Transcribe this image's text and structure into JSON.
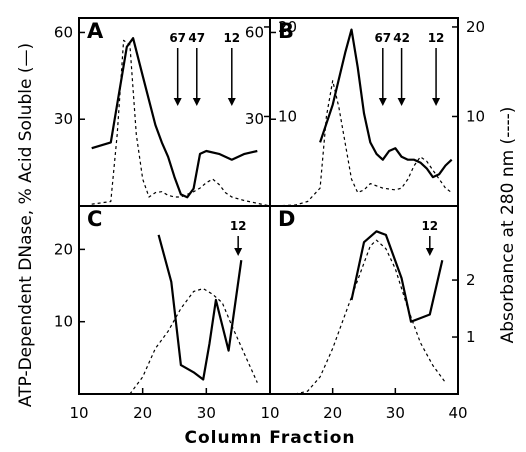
{
  "figure": {
    "ylabel_left": "ATP-Dependent DNase, % Acid Soluble (—)",
    "ylabel_right": "Absorbance at 280 nm (----)",
    "xlabel": "Column Fraction"
  },
  "colors": {
    "solid": "#000000",
    "dashed": "#000000",
    "frame": "#000000"
  },
  "chart_data": [
    {
      "panel": "A",
      "type": "line",
      "xlim": [
        10,
        40
      ],
      "ylim_left": [
        0,
        65
      ],
      "ylim_right": [
        0,
        21
      ],
      "yticks_left": [
        30,
        60
      ],
      "yticks_right": [
        10,
        20
      ],
      "markers": [
        {
          "label": "67",
          "x": 25.5
        },
        {
          "label": "47",
          "x": 28.5
        },
        {
          "label": "12",
          "x": 34
        }
      ],
      "series": [
        {
          "axis": "left",
          "style": "solid",
          "x": [
            12,
            15,
            17.5,
            18.5,
            20,
            22,
            23,
            24,
            25,
            26,
            27,
            28,
            29,
            30,
            32,
            34,
            36,
            38
          ],
          "y": [
            20,
            22,
            55,
            58,
            45,
            28,
            22,
            17,
            10,
            4,
            3,
            6,
            18,
            19,
            18,
            16,
            18,
            19
          ]
        },
        {
          "axis": "right",
          "style": "dashed",
          "x": [
            12,
            15,
            16,
            17,
            18,
            19,
            20,
            21,
            22,
            23,
            24,
            25,
            26,
            27,
            28,
            29,
            30,
            31,
            32,
            33,
            34,
            36,
            38,
            40
          ],
          "y": [
            0.2,
            0.5,
            8,
            18.5,
            18,
            8,
            3,
            1,
            1.5,
            1.6,
            1.2,
            1,
            1,
            1.3,
            1.6,
            2,
            2.6,
            3,
            2.4,
            1.5,
            1,
            0.6,
            0.3,
            0
          ]
        }
      ]
    },
    {
      "panel": "B",
      "type": "line",
      "xlim": [
        10,
        40
      ],
      "ylim_left": [
        0,
        65
      ],
      "ylim_right": [
        0,
        21
      ],
      "yticks_left": [
        30,
        60
      ],
      "yticks_right": [
        10,
        20
      ],
      "markers": [
        {
          "label": "67",
          "x": 28
        },
        {
          "label": "42",
          "x": 31
        },
        {
          "label": "12",
          "x": 36.5
        }
      ],
      "series": [
        {
          "axis": "left",
          "style": "solid",
          "x": [
            18,
            20,
            22,
            23,
            24,
            25,
            26,
            27,
            28,
            29,
            30,
            31,
            32,
            33,
            34,
            35,
            36,
            37,
            38,
            39
          ],
          "y": [
            22,
            35,
            53,
            61,
            48,
            32,
            22,
            18,
            16,
            19,
            20,
            17,
            16,
            16,
            15,
            13,
            10,
            11,
            14,
            16
          ]
        },
        {
          "axis": "right",
          "style": "dashed",
          "x": [
            10,
            14,
            16,
            18,
            19,
            20,
            21,
            22,
            23,
            24,
            25,
            26,
            28,
            30,
            31,
            32,
            33,
            34,
            35,
            36,
            37,
            38,
            39
          ],
          "y": [
            0,
            0.1,
            0.5,
            2,
            10,
            14,
            11,
            7,
            3,
            1.5,
            1.8,
            2.5,
            2,
            1.8,
            2,
            3,
            4.5,
            5.5,
            5,
            4,
            3,
            2,
            1.5
          ]
        }
      ]
    },
    {
      "panel": "C",
      "type": "line",
      "xlim": [
        10,
        40
      ],
      "ylim_left": [
        0,
        26
      ],
      "ylim_right": [
        0,
        3.3
      ],
      "yticks_left": [
        10,
        20
      ],
      "yticks_right": [],
      "markers": [
        {
          "label": "12",
          "x": 35
        }
      ],
      "series": [
        {
          "axis": "left",
          "style": "solid",
          "x": [
            22.5,
            24.5,
            26,
            28,
            29.5,
            30.5,
            31.5,
            33.5,
            35.5
          ],
          "y": [
            22,
            15.5,
            4,
            3,
            2,
            7,
            13,
            6,
            18.5
          ]
        },
        {
          "axis": "right",
          "style": "dashed",
          "x": [
            18,
            20,
            22,
            24,
            26,
            28,
            29.5,
            31,
            32.5,
            34,
            36,
            38
          ],
          "y": [
            0,
            0.3,
            0.8,
            1.1,
            1.5,
            1.8,
            1.85,
            1.75,
            1.6,
            1.2,
            0.7,
            0.2
          ]
        }
      ]
    },
    {
      "panel": "D",
      "type": "line",
      "xlim": [
        10,
        40
      ],
      "ylim_left": [
        0,
        26
      ],
      "ylim_right": [
        0,
        3.3
      ],
      "yticks_left": [],
      "yticks_right": [
        1,
        2
      ],
      "markers": [
        {
          "label": "12",
          "x": 35.5
        }
      ],
      "series": [
        {
          "axis": "left",
          "style": "solid",
          "x": [
            23,
            25,
            27,
            28.5,
            31,
            32.5,
            34,
            35.5,
            37.5
          ],
          "y": [
            13,
            21,
            22.5,
            22,
            16,
            10,
            10.5,
            11,
            18.5
          ]
        },
        {
          "axis": "right",
          "style": "dashed",
          "x": [
            14,
            16,
            18,
            20,
            22,
            24,
            26,
            27,
            28.5,
            30,
            32,
            34,
            36,
            38
          ],
          "y": [
            0,
            0.05,
            0.3,
            0.8,
            1.4,
            2,
            2.6,
            2.7,
            2.55,
            2.2,
            1.5,
            0.9,
            0.5,
            0.2
          ]
        }
      ]
    }
  ]
}
